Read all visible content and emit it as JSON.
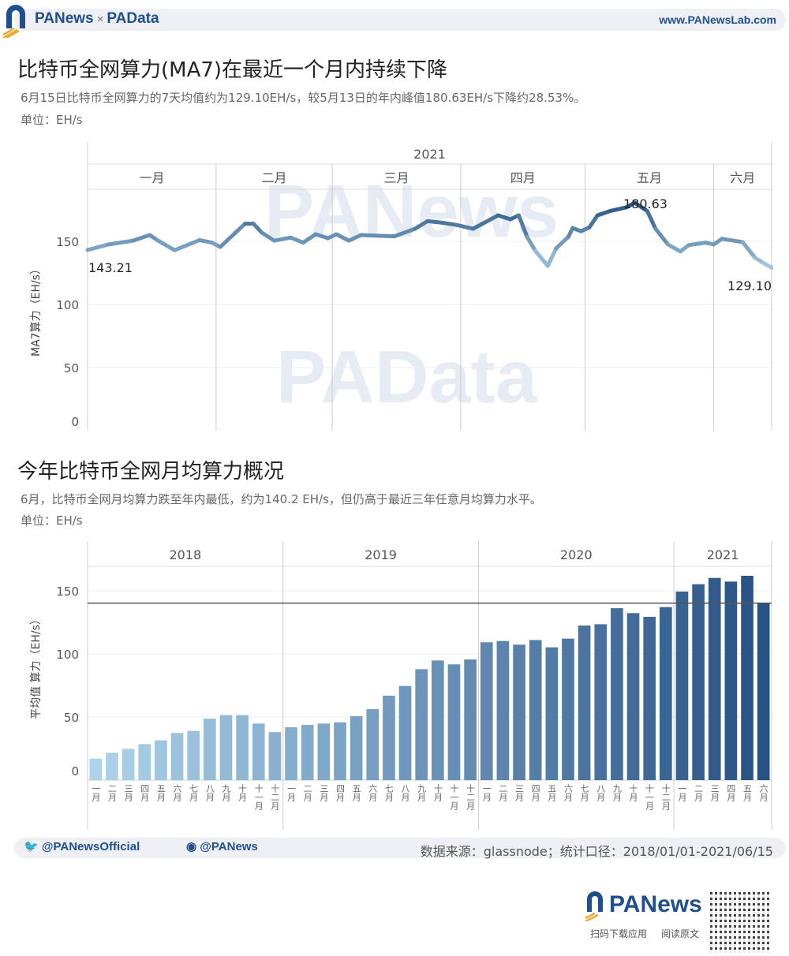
{
  "header": {
    "brand_left": "PANews",
    "brand_sep": "×",
    "brand_right": "PAData",
    "site": "www.PANewsLab.com"
  },
  "section1": {
    "title": "比特币全网算力(MA7)在最近一个月内持续下降",
    "subtitle": "6月15日比特币全网算力的7天均值约为129.10EH/s，较5月13日的年内峰值180.63EH/s下降约28.53%。",
    "unit": "单位：EH/s"
  },
  "section2": {
    "title": "今年比特币全网月均算力概况",
    "subtitle": "6月，比特币全网月均算力跌至年内最低，约为140.2 EH/s，但仍高于最近三年任意月均算力水平。",
    "unit": "单位：EH/s"
  },
  "watermarks": [
    "PANews",
    "PAData"
  ],
  "chart_data": [
    {
      "type": "line",
      "year_label": "2021",
      "month_labels": [
        "一月",
        "二月",
        "三月",
        "四月",
        "五月",
        "六月"
      ],
      "ylabel": "MA7算力（EH/s）",
      "yticks": [
        0,
        50,
        100,
        150
      ],
      "ylim": [
        0,
        180
      ],
      "xlim": [
        "2021-01-01",
        "2021-06-15"
      ],
      "grid": true,
      "annotations": [
        {
          "x": "2021-01-01",
          "y": 143.21,
          "label": "143.21"
        },
        {
          "x": "2021-05-13",
          "y": 180.63,
          "label": "180.63"
        },
        {
          "x": "2021-06-15",
          "y": 129.1,
          "label": "129.10"
        }
      ],
      "x": [
        "2021-01-01",
        "2021-01-06",
        "2021-01-12",
        "2021-01-16",
        "2021-01-18",
        "2021-01-22",
        "2021-01-28",
        "2021-01-31",
        "2021-02-02",
        "2021-02-08",
        "2021-02-10",
        "2021-02-12",
        "2021-02-15",
        "2021-02-19",
        "2021-02-22",
        "2021-02-25",
        "2021-02-28",
        "2021-03-02",
        "2021-03-05",
        "2021-03-08",
        "2021-03-16",
        "2021-03-21",
        "2021-03-24",
        "2021-03-27",
        "2021-03-31",
        "2021-04-04",
        "2021-04-10",
        "2021-04-13",
        "2021-04-15",
        "2021-04-17",
        "2021-04-19",
        "2021-04-22",
        "2021-04-24",
        "2021-04-27",
        "2021-04-28",
        "2021-04-30",
        "2021-05-02",
        "2021-05-04",
        "2021-05-07",
        "2021-05-11",
        "2021-05-13",
        "2021-05-16",
        "2021-05-18",
        "2021-05-21",
        "2021-05-24",
        "2021-05-26",
        "2021-05-30",
        "2021-06-01",
        "2021-06-03",
        "2021-06-08",
        "2021-06-11",
        "2021-06-13",
        "2021-06-15"
      ],
      "y": [
        143.21,
        147.5,
        150.6,
        155,
        150.6,
        143,
        151,
        149,
        145.6,
        164,
        164,
        157,
        150.6,
        153,
        149,
        155.6,
        152.5,
        155.6,
        150.6,
        155,
        154,
        160,
        166,
        165,
        163,
        160,
        170.6,
        167.5,
        170.6,
        153.7,
        142.5,
        130.6,
        144.4,
        153.7,
        160.6,
        158,
        161,
        170.6,
        174,
        177,
        180.63,
        174,
        160,
        147.5,
        142,
        147,
        149,
        147.5,
        152,
        149.4,
        137,
        133,
        129.1
      ]
    },
    {
      "type": "bar",
      "ylabel": "平均值 算力（EH/s）",
      "yticks": [
        0,
        50,
        100,
        150
      ],
      "ylim": [
        0,
        170
      ],
      "reference_line": 140.2,
      "grid": true,
      "groups": [
        {
          "year": "2018",
          "categories": [
            "一月",
            "二月",
            "三月",
            "四月",
            "五月",
            "六月",
            "七月",
            "八月",
            "九月",
            "十月",
            "十一月",
            "十二月"
          ],
          "values": [
            17,
            21.7,
            24.8,
            28.5,
            31.5,
            37.3,
            39,
            48.7,
            51.5,
            51.5,
            44.8,
            38
          ]
        },
        {
          "year": "2019",
          "categories": [
            "一月",
            "二月",
            "三月",
            "四月",
            "五月",
            "六月",
            "七月",
            "八月",
            "九月",
            "十月",
            "十一月",
            "十二月"
          ],
          "values": [
            41.9,
            43.8,
            44.8,
            45.8,
            50.6,
            56.2,
            66.9,
            74.6,
            87.9,
            94.8,
            91.7,
            95.6
          ]
        },
        {
          "year": "2020",
          "categories": [
            "一月",
            "二月",
            "三月",
            "四月",
            "五月",
            "六月",
            "七月",
            "八月",
            "九月",
            "十月",
            "十一月",
            "十二月"
          ],
          "values": [
            109.2,
            110.2,
            107.3,
            111,
            105.2,
            112.1,
            122.5,
            123.5,
            136.2,
            132.3,
            129.4,
            137.1
          ]
        },
        {
          "year": "2021",
          "categories": [
            "一月",
            "二月",
            "三月",
            "四月",
            "五月",
            "六月"
          ],
          "values": [
            149.4,
            155.2,
            160.2,
            157.3,
            161.9,
            140.2
          ]
        }
      ]
    }
  ],
  "footer": {
    "twitter": "@PANewsOfficial",
    "weibo": "@PANews",
    "source": "数据来源：glassnode；统计口径：2018/01/01-2021/06/15",
    "logo": "PANews",
    "scan": "扫码下载应用",
    "read": "阅读原文"
  },
  "colors": {
    "brand": "#1f4f8f",
    "light_bar": "#a9d1ea",
    "dark_bar": "#2a5688",
    "ref_line": "#555555"
  }
}
